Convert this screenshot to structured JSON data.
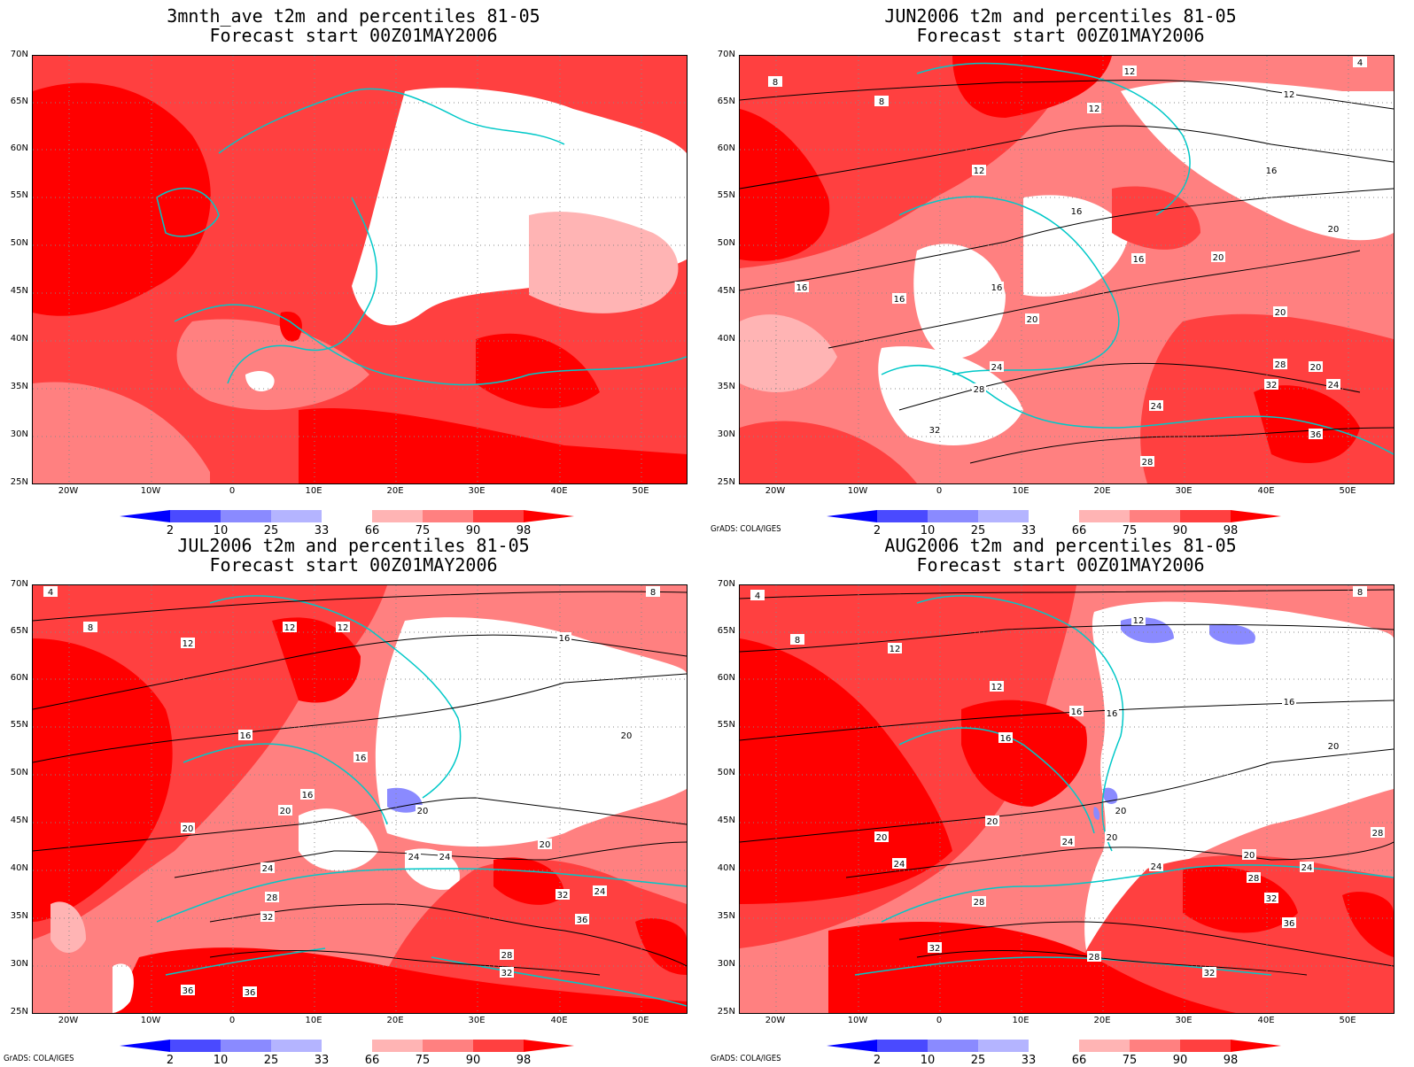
{
  "panels": [
    {
      "title_line1": "3mnth_ave t2m and percentiles 81-05",
      "title_line2": "Forecast start 00Z01MAY2006",
      "contour_labels": [],
      "credit": ""
    },
    {
      "title_line1": "JUN2006 t2m and percentiles 81-05",
      "title_line2": "Forecast start 00Z01MAY2006",
      "contour_labels": [
        "4",
        "8",
        "8",
        "12",
        "12",
        "12",
        "12",
        "16",
        "16",
        "16",
        "16",
        "16",
        "16",
        "20",
        "20",
        "20",
        "20",
        "20",
        "24",
        "24",
        "24",
        "28",
        "28",
        "28",
        "32",
        "32",
        "36"
      ],
      "credit": "GrADS: COLA/IGES"
    },
    {
      "title_line1": "JUL2006 t2m and percentiles 81-05",
      "title_line2": "Forecast start 00Z01MAY2006",
      "contour_labels": [
        "4",
        "8",
        "8",
        "12",
        "12",
        "12",
        "16",
        "16",
        "16",
        "16",
        "20",
        "20",
        "20",
        "20",
        "20",
        "24",
        "24",
        "24",
        "24",
        "28",
        "28",
        "32",
        "32",
        "32",
        "36",
        "36",
        "36"
      ],
      "credit": "GrADS: COLA/IGES"
    },
    {
      "title_line1": "AUG2006 t2m and percentiles 81-05",
      "title_line2": "Forecast start 00Z01MAY2006",
      "contour_labels": [
        "4",
        "8",
        "8",
        "12",
        "12",
        "12",
        "16",
        "16",
        "16",
        "16",
        "20",
        "20",
        "20",
        "20",
        "20",
        "20",
        "24",
        "24",
        "24",
        "24",
        "28",
        "28",
        "28",
        "28",
        "32",
        "32",
        "32",
        "36"
      ],
      "credit": "GrADS: COLA/IGES"
    }
  ],
  "axes": {
    "lat_labels": [
      "70N",
      "65N",
      "60N",
      "55N",
      "50N",
      "45N",
      "40N",
      "35N",
      "30N",
      "25N"
    ],
    "lon_labels": [
      "20W",
      "10W",
      "0",
      "10E",
      "20E",
      "30E",
      "40E",
      "50E"
    ]
  },
  "colorbar": {
    "labels": [
      "2",
      "10",
      "25",
      "33",
      "66",
      "75",
      "90",
      "98"
    ],
    "colors": [
      "#0000ff",
      "#4a4aff",
      "#8a8aff",
      "#b4b4ff",
      "#ffffff",
      "#ffb4b4",
      "#ff8080",
      "#ff4040",
      "#ff0000"
    ]
  },
  "colors": {
    "coast": "#00c8c8",
    "contour": "#000000",
    "p98": "#ff0000",
    "p90": "#ff4040",
    "p75": "#ff8080",
    "p66": "#ffb4b4",
    "p33": "#8a8aff"
  }
}
